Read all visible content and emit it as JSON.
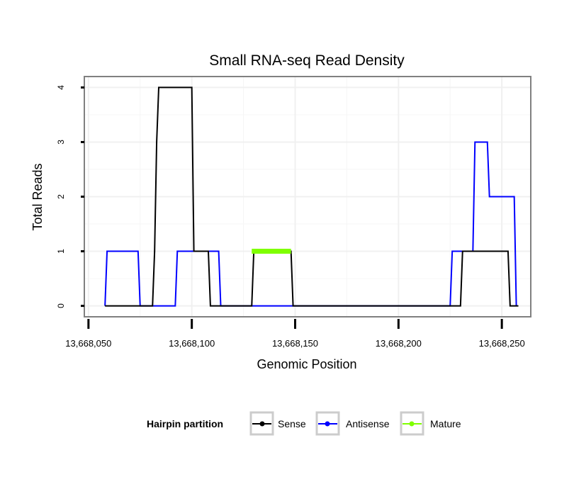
{
  "chart_data": {
    "type": "line",
    "title": "Small RNA-seq Read Density",
    "xlabel": "Genomic Position",
    "ylabel": "Total Reads",
    "xlim": [
      13668048,
      13668264
    ],
    "ylim": [
      -0.2,
      4.2
    ],
    "x_ticks": [
      13668050,
      13668100,
      13668150,
      13668200,
      13668250
    ],
    "x_tick_labels": [
      "13,668,050",
      "13,668,100",
      "13,668,150",
      "13,668,200",
      "13,668,250"
    ],
    "y_ticks": [
      0,
      1,
      2,
      3,
      4
    ],
    "y_tick_labels": [
      "0",
      "1",
      "2",
      "3",
      "4"
    ],
    "grid": true,
    "legend": {
      "title": "Hairpin partition",
      "position": "bottom"
    },
    "series": [
      {
        "name": "Sense",
        "color": "#000000",
        "x": [
          13668058,
          13668074,
          13668076,
          13668077,
          13668081,
          13668082,
          13668083,
          13668084,
          13668100,
          13668101,
          13668108,
          13668109,
          13668129,
          13668130,
          13668148,
          13668149,
          13668230,
          13668231,
          13668253,
          13668254,
          13668258
        ],
        "y": [
          0,
          0,
          0,
          0,
          0,
          1,
          3,
          4,
          4,
          1,
          1,
          0,
          0,
          1,
          1,
          0,
          0,
          1,
          1,
          0,
          0
        ]
      },
      {
        "name": "Antisense",
        "color": "#0000ff",
        "x": [
          13668058,
          13668059,
          13668074,
          13668075,
          13668082,
          13668083,
          13668092,
          13668093,
          13668113,
          13668114,
          13668225,
          13668226,
          13668236,
          13668237,
          13668243,
          13668244,
          13668256,
          13668257
        ],
        "y": [
          0,
          1,
          1,
          0,
          0,
          0,
          0,
          1,
          1,
          0,
          0,
          1,
          1,
          3,
          3,
          2,
          2,
          0
        ]
      },
      {
        "name": "Mature",
        "color": "#7fff00",
        "x": [
          13668129,
          13668148
        ],
        "y": [
          1,
          1
        ]
      }
    ]
  }
}
